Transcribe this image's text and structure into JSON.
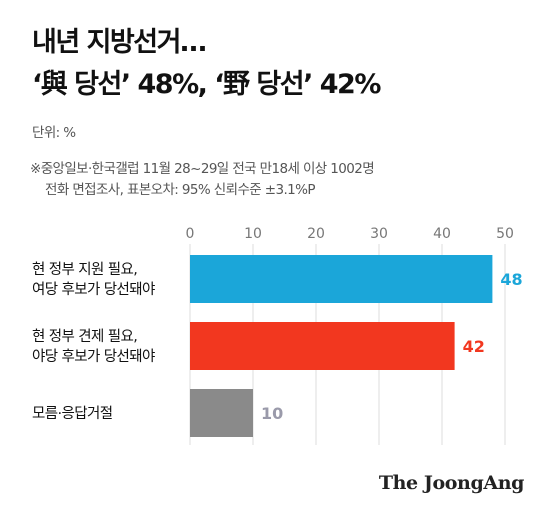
{
  "title": {
    "line1": "내년 지방선거…",
    "line2": "‘與 당선’ 48%, ‘野 당선’ 42%"
  },
  "unit_label": "단위: %",
  "note": {
    "line1": "※중앙일보·한국갤럽 11월 28~29일 전국 만18세 이상 1002명",
    "line2": "전화 면접조사, 표본오차: 95% 신뢰수준 ±3.1%P"
  },
  "brand": "The JoongAng",
  "chart_data": {
    "type": "bar",
    "orientation": "horizontal",
    "categories": [
      [
        "현 정부 지원 필요,",
        "여당 후보가 당선돼야"
      ],
      [
        "현 정부 견제 필요,",
        "야당 후보가 당선돼야"
      ],
      [
        "모름·응답거절"
      ]
    ],
    "values": [
      48,
      42,
      10
    ],
    "value_labels": [
      "48",
      "42",
      "10"
    ],
    "colors": [
      "#1BA6D9",
      "#F2371F",
      "#8A8A8A"
    ],
    "label_colors": [
      "#1BA6D9",
      "#F2371F",
      "#9A9AAA"
    ],
    "xlim": [
      0,
      50
    ],
    "xticks": [
      "0",
      "10",
      "20",
      "30",
      "40",
      "50"
    ],
    "grid": true,
    "gridline_color": "#DDDDDD"
  }
}
